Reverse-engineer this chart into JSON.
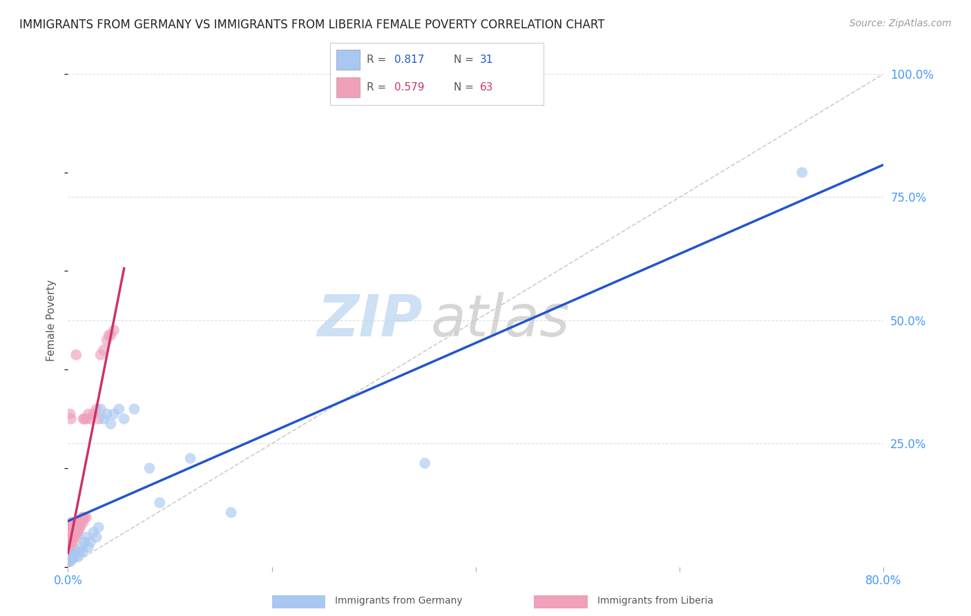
{
  "title": "IMMIGRANTS FROM GERMANY VS IMMIGRANTS FROM LIBERIA FEMALE POVERTY CORRELATION CHART",
  "source": "Source: ZipAtlas.com",
  "ylabel": "Female Poverty",
  "xlim": [
    0.0,
    0.8
  ],
  "ylim": [
    0.0,
    1.0
  ],
  "germany_color": "#a8c8f0",
  "liberia_color": "#f0a0b8",
  "germany_line_color": "#2255cc",
  "liberia_line_color": "#cc3366",
  "diag_color": "#cccccc",
  "germany_R": "0.817",
  "germany_N": "31",
  "liberia_R": "0.579",
  "liberia_N": "63",
  "germany_scatter": [
    [
      0.002,
      0.01
    ],
    [
      0.004,
      0.015
    ],
    [
      0.005,
      0.02
    ],
    [
      0.006,
      0.02
    ],
    [
      0.007,
      0.025
    ],
    [
      0.008,
      0.03
    ],
    [
      0.01,
      0.02
    ],
    [
      0.012,
      0.03
    ],
    [
      0.014,
      0.04
    ],
    [
      0.015,
      0.03
    ],
    [
      0.016,
      0.05
    ],
    [
      0.018,
      0.06
    ],
    [
      0.02,
      0.04
    ],
    [
      0.022,
      0.05
    ],
    [
      0.025,
      0.07
    ],
    [
      0.028,
      0.06
    ],
    [
      0.03,
      0.08
    ],
    [
      0.032,
      0.32
    ],
    [
      0.035,
      0.3
    ],
    [
      0.038,
      0.31
    ],
    [
      0.042,
      0.29
    ],
    [
      0.045,
      0.31
    ],
    [
      0.05,
      0.32
    ],
    [
      0.055,
      0.3
    ],
    [
      0.065,
      0.32
    ],
    [
      0.08,
      0.2
    ],
    [
      0.09,
      0.13
    ],
    [
      0.12,
      0.22
    ],
    [
      0.16,
      0.11
    ],
    [
      0.35,
      0.21
    ],
    [
      0.72,
      0.8
    ]
  ],
  "liberia_scatter": [
    [
      0.0,
      0.01
    ],
    [
      0.001,
      0.02
    ],
    [
      0.001,
      0.015
    ],
    [
      0.001,
      0.03
    ],
    [
      0.002,
      0.02
    ],
    [
      0.002,
      0.04
    ],
    [
      0.002,
      0.05
    ],
    [
      0.002,
      0.06
    ],
    [
      0.002,
      0.07
    ],
    [
      0.003,
      0.03
    ],
    [
      0.003,
      0.05
    ],
    [
      0.003,
      0.06
    ],
    [
      0.003,
      0.07
    ],
    [
      0.003,
      0.08
    ],
    [
      0.003,
      0.09
    ],
    [
      0.004,
      0.04
    ],
    [
      0.004,
      0.06
    ],
    [
      0.004,
      0.07
    ],
    [
      0.004,
      0.08
    ],
    [
      0.005,
      0.05
    ],
    [
      0.005,
      0.06
    ],
    [
      0.005,
      0.07
    ],
    [
      0.005,
      0.08
    ],
    [
      0.006,
      0.06
    ],
    [
      0.006,
      0.07
    ],
    [
      0.006,
      0.08
    ],
    [
      0.006,
      0.09
    ],
    [
      0.007,
      0.07
    ],
    [
      0.007,
      0.08
    ],
    [
      0.008,
      0.06
    ],
    [
      0.008,
      0.08
    ],
    [
      0.008,
      0.09
    ],
    [
      0.009,
      0.07
    ],
    [
      0.009,
      0.08
    ],
    [
      0.01,
      0.07
    ],
    [
      0.01,
      0.08
    ],
    [
      0.01,
      0.09
    ],
    [
      0.011,
      0.08
    ],
    [
      0.012,
      0.08
    ],
    [
      0.012,
      0.09
    ],
    [
      0.013,
      0.09
    ],
    [
      0.014,
      0.1
    ],
    [
      0.015,
      0.09
    ],
    [
      0.015,
      0.1
    ],
    [
      0.015,
      0.3
    ],
    [
      0.016,
      0.1
    ],
    [
      0.016,
      0.3
    ],
    [
      0.018,
      0.1
    ],
    [
      0.018,
      0.3
    ],
    [
      0.02,
      0.31
    ],
    [
      0.022,
      0.3
    ],
    [
      0.025,
      0.31
    ],
    [
      0.028,
      0.32
    ],
    [
      0.03,
      0.3
    ],
    [
      0.032,
      0.43
    ],
    [
      0.035,
      0.44
    ],
    [
      0.038,
      0.46
    ],
    [
      0.04,
      0.47
    ],
    [
      0.042,
      0.47
    ],
    [
      0.045,
      0.48
    ],
    [
      0.002,
      0.31
    ],
    [
      0.003,
      0.3
    ],
    [
      0.008,
      0.43
    ]
  ]
}
